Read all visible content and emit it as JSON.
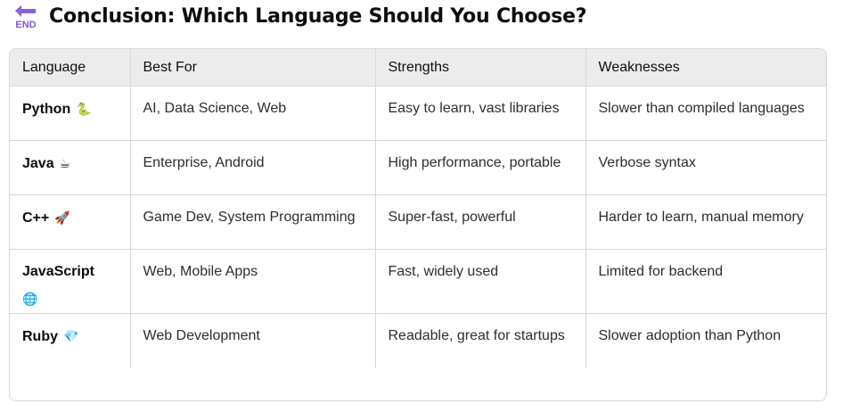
{
  "header": {
    "icon_name": "end-arrow-icon",
    "icon_text": "END",
    "title": "Conclusion: Which Language Should You Choose?"
  },
  "table": {
    "columns": [
      "Language",
      "Best For",
      "Strengths",
      "Weaknesses"
    ],
    "rows": [
      {
        "language": "Python",
        "icon": "🐍",
        "icon_name": "snake-icon",
        "best_for": "AI, Data Science, Web",
        "strengths": "Easy to learn, vast libraries",
        "weaknesses": "Slower than compiled languages"
      },
      {
        "language": "Java",
        "icon": "☕",
        "icon_name": "coffee-icon",
        "best_for": "Enterprise, Android",
        "strengths": "High performance, portable",
        "weaknesses": "Verbose syntax"
      },
      {
        "language": "C++",
        "icon": "🚀",
        "icon_name": "rocket-icon",
        "best_for": "Game Dev, System Programming",
        "strengths": "Super-fast, powerful",
        "weaknesses": "Harder to learn, manual memory"
      },
      {
        "language": "JavaScript",
        "icon": "🌐",
        "icon_name": "globe-icon",
        "best_for": "Web, Mobile Apps",
        "strengths": "Fast, widely used",
        "weaknesses": "Limited for backend"
      },
      {
        "language": "Ruby",
        "icon": "💎",
        "icon_name": "gem-icon",
        "best_for": "Web Development",
        "strengths": "Readable, great for startups",
        "weaknesses": "Slower adoption than Python"
      }
    ]
  },
  "colors": {
    "icon_purple": "#7b5cc7",
    "header_bg": "#ececec",
    "border": "#d9d9d9"
  }
}
